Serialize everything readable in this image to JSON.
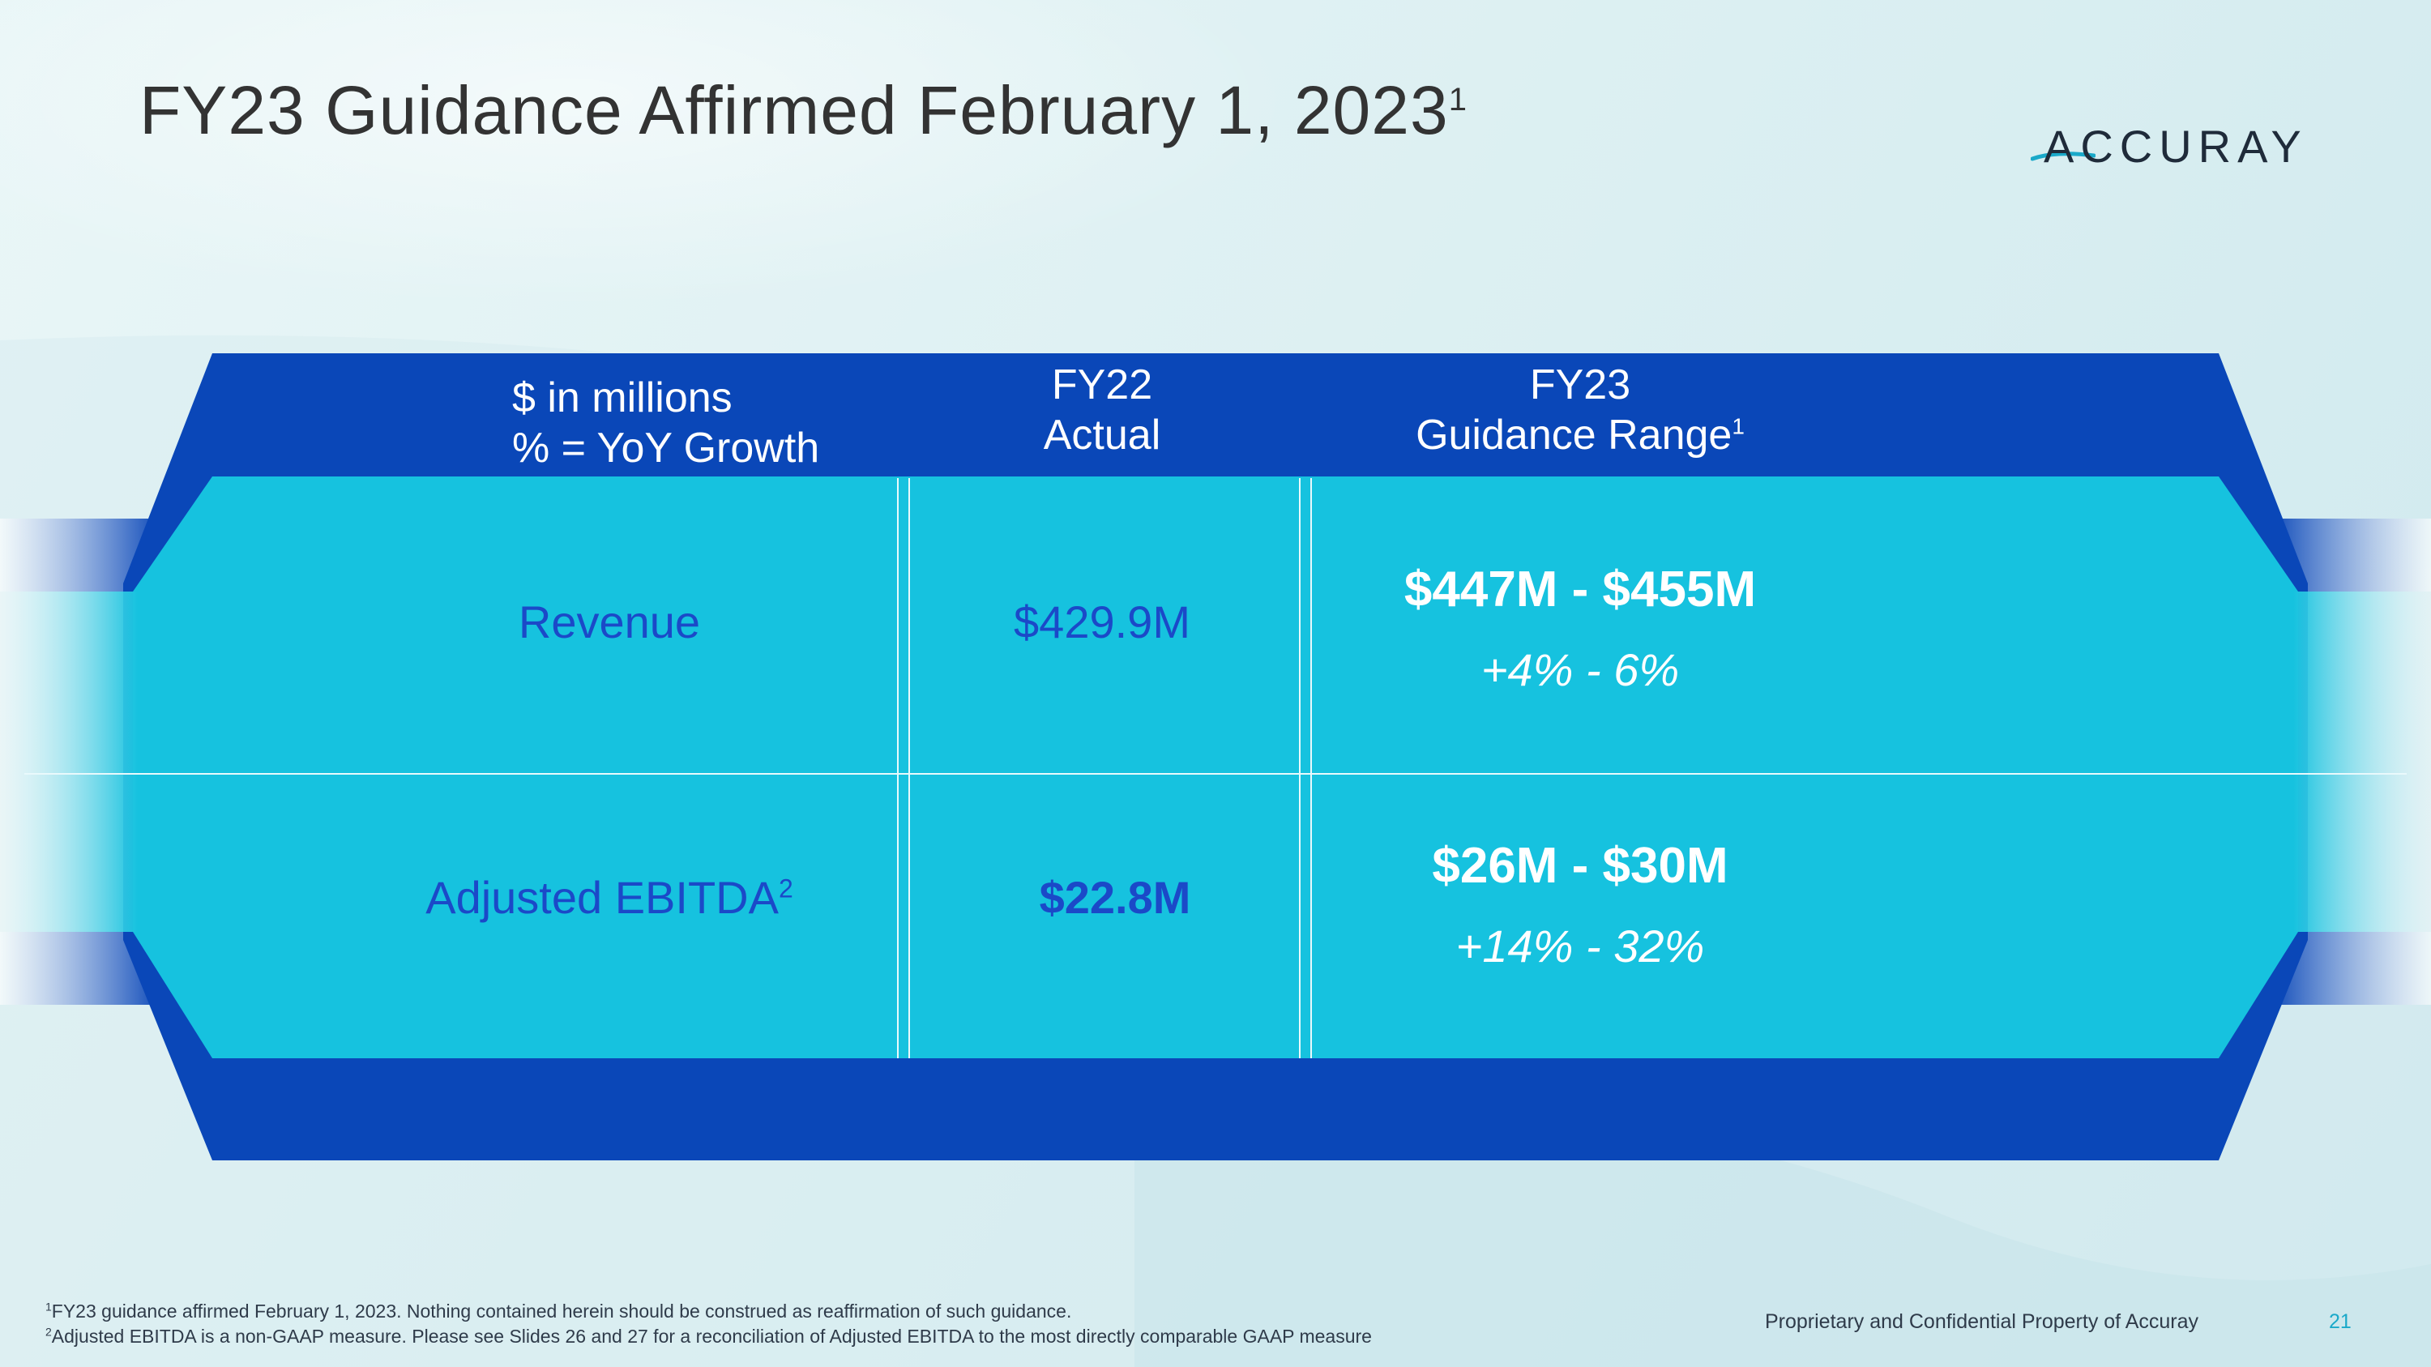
{
  "slide": {
    "title": "FY23 Guidance Affirmed February 1, 2023",
    "title_sup": "1",
    "logo_text": "ACCURAY"
  },
  "table": {
    "header": {
      "units_line1": "$ in millions",
      "units_line2": "% = YoY Growth",
      "col1_line1": "FY22",
      "col1_line2": "Actual",
      "col2_line1": "FY23",
      "col2_line2": "Guidance Range",
      "col2_sup": "1"
    },
    "rows": [
      {
        "label": "Revenue",
        "label_sup": "",
        "actual": "$429.9M",
        "range": "$447M - $455M",
        "growth": "+4% - 6%"
      },
      {
        "label": "Adjusted EBITDA",
        "label_sup": "2",
        "actual": "$22.8M",
        "range": "$26M - $30M",
        "growth": "+14% - 32%"
      }
    ]
  },
  "footer": {
    "footnote1_sup": "1",
    "footnote1": "FY23 guidance affirmed February 1, 2023.  Nothing contained herein should be construed as reaffirmation of such guidance.",
    "footnote2_sup": "2",
    "footnote2": "Adjusted EBITDA is a non-GAAP measure.  Please see Slides 26 and 27 for a reconciliation of Adjusted EBITDA to the most directly comparable GAAP measure",
    "proprietary": "Proprietary and Confidential Property of Accuray",
    "page_number": "21"
  },
  "colors": {
    "dark_blue": "#0a47b8",
    "cyan": "#16c2df",
    "label_blue": "#1b49c8",
    "page_number": "#1aa9c9"
  },
  "icons": [
    "accuray-swash-icon"
  ]
}
